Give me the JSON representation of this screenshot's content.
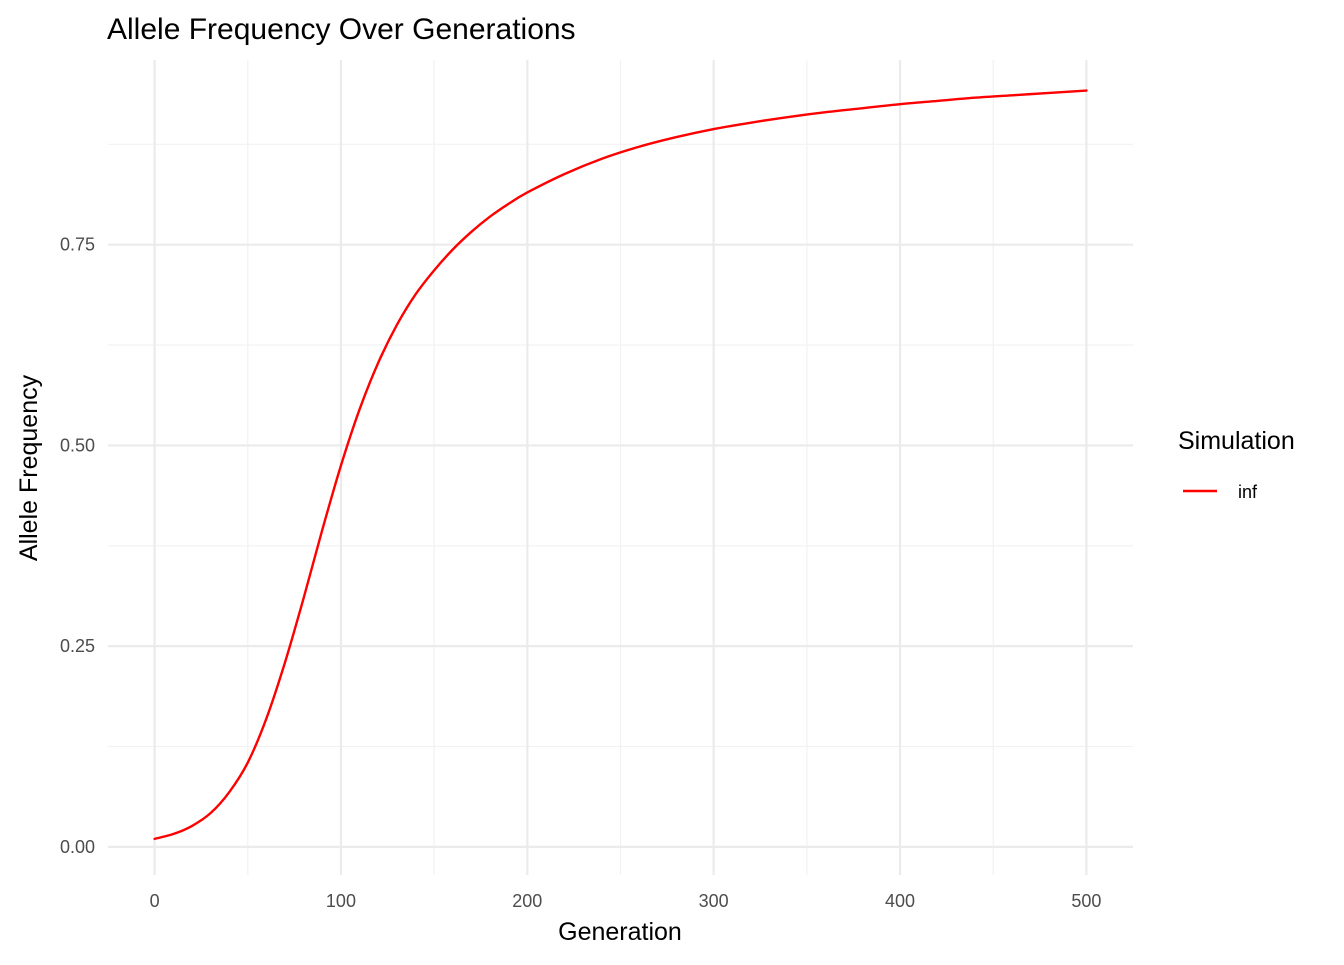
{
  "chart_data": {
    "type": "line",
    "title": "Allele Frequency Over Generations",
    "xlabel": "Generation",
    "ylabel": "Allele Frequency",
    "xlim": [
      -25,
      525
    ],
    "ylim": [
      -0.035,
      0.98
    ],
    "x_ticks": [
      0,
      100,
      200,
      300,
      400,
      500
    ],
    "x_tick_labels": [
      "0",
      "100",
      "200",
      "300",
      "400",
      "500"
    ],
    "x_minor_ticks": [
      50,
      150,
      250,
      350,
      450
    ],
    "y_ticks": [
      0,
      0.25,
      0.5,
      0.75
    ],
    "y_tick_labels": [
      "0.00",
      "0.25",
      "0.50",
      "0.75"
    ],
    "y_minor_ticks": [
      0.125,
      0.375,
      0.625,
      0.875
    ],
    "grid": true,
    "legend": {
      "title": "Simulation",
      "position": "right"
    },
    "series": [
      {
        "name": "inf",
        "color": "#ff0000",
        "x": [
          0,
          10,
          20,
          30,
          40,
          50,
          60,
          70,
          80,
          90,
          100,
          110,
          120,
          130,
          140,
          150,
          160,
          170,
          180,
          190,
          200,
          220,
          240,
          260,
          280,
          300,
          320,
          340,
          360,
          380,
          400,
          420,
          440,
          460,
          480,
          500
        ],
        "y": [
          0.01,
          0.016,
          0.026,
          0.042,
          0.068,
          0.105,
          0.16,
          0.23,
          0.31,
          0.395,
          0.475,
          0.545,
          0.603,
          0.65,
          0.688,
          0.718,
          0.744,
          0.766,
          0.785,
          0.801,
          0.815,
          0.838,
          0.857,
          0.872,
          0.884,
          0.894,
          0.902,
          0.909,
          0.915,
          0.92,
          0.925,
          0.929,
          0.933,
          0.936,
          0.939,
          0.942
        ]
      }
    ]
  }
}
